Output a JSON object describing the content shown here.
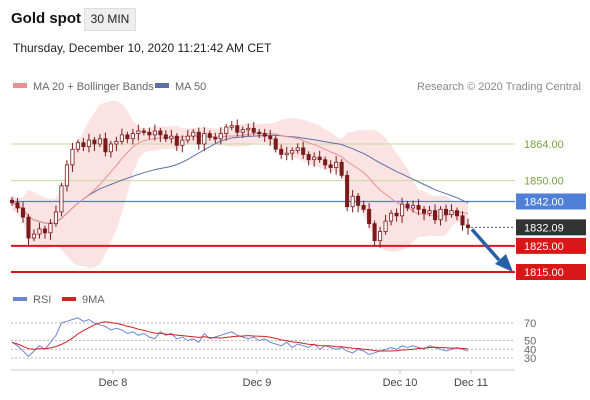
{
  "header": {
    "instrument": "Gold spot",
    "timeframe": "30 MIN",
    "datetime": "Thursday, December 10, 2020 11:21:42 AM CET"
  },
  "legend": {
    "ma20_bb": "MA 20 + Bollinger Bands",
    "ma50": "MA 50",
    "credit": "Research © 2020 Trading Central",
    "rsi": "RSI",
    "rsi_ma": "9MA"
  },
  "colors": {
    "candle": "#7a1a1a",
    "ma20": "#e89090",
    "bollinger_fill": "#fbdede",
    "ma50": "#5b6fa8",
    "resistance": "#c5d99a",
    "pivot": "#4f7fd6",
    "support": "#d81818",
    "price_box": "#333333",
    "rsi": "#6b86d6",
    "rsi_ma": "#d42020",
    "arrow": "#2a5fa5"
  },
  "chart_data": [
    {
      "type": "candlestick",
      "title": "Gold spot",
      "timeframe": "30 MIN",
      "x_ticks": [
        "Dec 8",
        "Dec 9",
        "Dec 10",
        "Dec 11"
      ],
      "y_ticks": [
        1864.0,
        1850.0,
        1842.0,
        1832.09,
        1825.0,
        1815.0
      ],
      "horizontal_levels": [
        {
          "value": 1864.0,
          "label": "1864.00",
          "kind": "resistance"
        },
        {
          "value": 1850.0,
          "label": "1850.00",
          "kind": "resistance"
        },
        {
          "value": 1842.0,
          "label": "1842.00",
          "kind": "pivot"
        },
        {
          "value": 1825.0,
          "label": "1825.00",
          "kind": "support"
        },
        {
          "value": 1815.0,
          "label": "1815.00",
          "kind": "support"
        }
      ],
      "last_price": {
        "value": 1832.09,
        "label": "1832.09"
      },
      "close_path": [
        1841.5,
        1839.5,
        1836.0,
        1828.0,
        1829.5,
        1831.5,
        1830.0,
        1833.5,
        1838.0,
        1848.0,
        1856.0,
        1862.0,
        1864.5,
        1863.0,
        1865.5,
        1864.0,
        1866.0,
        1861.0,
        1864.0,
        1865.0,
        1867.5,
        1866.0,
        1868.0,
        1869.0,
        1868.5,
        1867.5,
        1869.0,
        1867.5,
        1866.0,
        1867.0,
        1863.5,
        1865.5,
        1867.0,
        1868.5,
        1864.0,
        1868.0,
        1866.5,
        1866.0,
        1868.0,
        1870.5,
        1871.0,
        1868.5,
        1869.5,
        1870.0,
        1868.5,
        1868.0,
        1867.0,
        1866.0,
        1862.0,
        1860.0,
        1860.5,
        1861.5,
        1862.5,
        1860.0,
        1858.0,
        1859.0,
        1858.0,
        1856.0,
        1855.0,
        1857.0,
        1852.0,
        1840.0,
        1844.0,
        1840.5,
        1839.0,
        1833.5,
        1827.0,
        1830.5,
        1834.5,
        1837.5,
        1836.5,
        1841.0,
        1839.5,
        1840.5,
        1839.0,
        1837.5,
        1838.5,
        1835.0,
        1839.0,
        1837.0,
        1838.5,
        1836.5,
        1833.0,
        1832.0
      ],
      "indicators": [
        "MA 20 + Bollinger Bands",
        "MA 50"
      ]
    },
    {
      "type": "line",
      "title": "RSI",
      "series": [
        {
          "name": "RSI"
        },
        {
          "name": "9MA"
        }
      ],
      "y_ticks": [
        70,
        50,
        40,
        30
      ],
      "rsi_path": [
        48,
        44,
        38,
        32,
        38,
        44,
        40,
        48,
        56,
        70,
        72,
        74,
        76,
        72,
        74,
        70,
        68,
        66,
        62,
        64,
        62,
        58,
        60,
        56,
        58,
        54,
        52,
        60,
        56,
        58,
        52,
        54,
        50,
        52,
        48,
        58,
        52,
        54,
        56,
        58,
        60,
        56,
        54,
        52,
        54,
        50,
        52,
        48,
        46,
        44,
        48,
        42,
        46,
        44,
        42,
        46,
        40,
        44,
        42,
        40,
        42,
        38,
        36,
        40,
        38,
        34,
        36,
        38,
        40,
        42,
        40,
        44,
        42,
        44,
        42,
        40,
        44,
        42,
        40,
        38,
        40,
        42,
        40,
        38
      ]
    }
  ]
}
